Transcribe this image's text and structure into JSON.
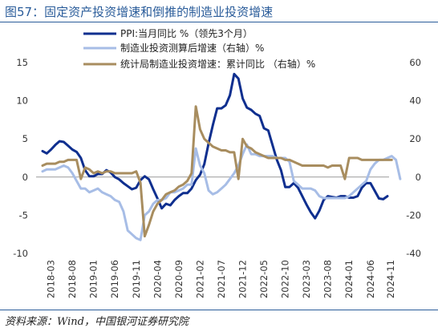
{
  "page": {
    "title": "图57：固定资产投资增速和倒推的制造业投资增速",
    "source": "资料来源：Wind，中国银河证券研究院"
  },
  "chart_data": {
    "type": "line",
    "x_labels": [
      "2018-03",
      "2018-08",
      "2019-01",
      "2019-06",
      "2019-11",
      "2020-04",
      "2020-09",
      "2021-02",
      "2021-07",
      "2021-12",
      "2022-05",
      "2022-10",
      "2023-03",
      "2023-08",
      "2024-01",
      "2024-06",
      "2024-11"
    ],
    "x_start": "2018-01",
    "y_left": {
      "min": -10,
      "max": 15,
      "ticks": [
        -10,
        -5,
        0,
        5,
        10,
        15
      ]
    },
    "y_right": {
      "min": -40,
      "max": 60,
      "ticks": [
        -40,
        -20,
        0,
        20,
        40,
        60
      ]
    },
    "grid": false,
    "legend_position": "top-center",
    "series": [
      {
        "name": "PPI:当月同比 %（领先3个月）",
        "axis": "left",
        "color": "#0f2f8f",
        "values": [
          3.4,
          3.1,
          3.6,
          4.2,
          4.7,
          4.6,
          4.1,
          3.6,
          3.3,
          2.5,
          0.9,
          0.1,
          0.1,
          0.4,
          0.4,
          0.9,
          0.6,
          0.0,
          -0.3,
          -0.8,
          -1.2,
          -1.6,
          -1.4,
          -0.4,
          0.1,
          -0.3,
          -1.6,
          -2.8,
          -4.1,
          -3.5,
          -3.7,
          -3.0,
          -2.5,
          -2.1,
          -2.1,
          -1.5,
          -0.4,
          0.3,
          1.7,
          4.4,
          6.8,
          9.0,
          9.0,
          9.4,
          10.7,
          13.5,
          12.9,
          10.3,
          9.1,
          8.8,
          8.3,
          8.0,
          6.4,
          6.1,
          4.2,
          2.3,
          0.9,
          -1.3,
          -1.3,
          -0.8,
          -1.4,
          -2.5,
          -3.6,
          -4.6,
          -5.4,
          -4.4,
          -3.0,
          -2.5,
          -2.6,
          -2.7,
          -2.5,
          -2.5,
          -2.7,
          -2.7,
          -2.5,
          -1.4,
          -0.8,
          -0.8,
          -1.8,
          -2.8,
          -2.9,
          -2.5
        ]
      },
      {
        "name": "制造业投资测算后增速（右轴）%",
        "axis": "right",
        "color": "#a7bde6",
        "values": [
          3,
          4,
          4,
          4,
          5,
          6,
          5,
          2,
          -2,
          -6,
          -6,
          -8,
          -7,
          -6,
          -8,
          -9,
          -10,
          -12,
          -13,
          -18,
          -28,
          -30,
          -32,
          -33,
          -20,
          -18,
          -14,
          -12,
          -12,
          -11,
          -8,
          -8,
          -7,
          -6,
          -4,
          -4,
          15,
          6,
          2,
          -7,
          -9,
          -8,
          -6,
          -4,
          -1,
          2,
          6,
          12,
          17,
          12,
          12,
          11,
          11,
          11,
          11,
          10,
          10,
          10,
          8,
          -2,
          -4,
          -6,
          -6,
          -6,
          -7,
          -10,
          -11,
          -11,
          -11,
          -11,
          -11,
          -11,
          -10,
          -8,
          -6,
          -4,
          -2,
          4,
          7,
          9,
          9,
          10,
          11,
          9,
          -1
        ]
      },
      {
        "name": "统计局制造业投资增速：累计同比 （右轴）%",
        "axis": "right",
        "color": "#a88d5f",
        "values": [
          6,
          7,
          7,
          7,
          8,
          8,
          9,
          9,
          9,
          -1,
          5,
          4,
          2,
          3,
          2,
          3,
          3,
          2,
          2,
          2,
          2,
          2,
          3,
          -3,
          -31,
          -25,
          -18,
          -14,
          -12,
          -9,
          -8,
          -7,
          -5,
          -4,
          -2,
          2,
          37,
          25,
          20,
          18,
          16,
          15,
          14,
          14,
          13,
          13,
          -1,
          20,
          16,
          15,
          13,
          12,
          11,
          10,
          10,
          10,
          10,
          9,
          9,
          8,
          7,
          6,
          6,
          6,
          6,
          6,
          6,
          5,
          6,
          6,
          6,
          -1,
          10,
          10,
          10,
          9,
          9,
          9,
          9,
          9,
          9,
          9,
          9
        ]
      }
    ]
  }
}
